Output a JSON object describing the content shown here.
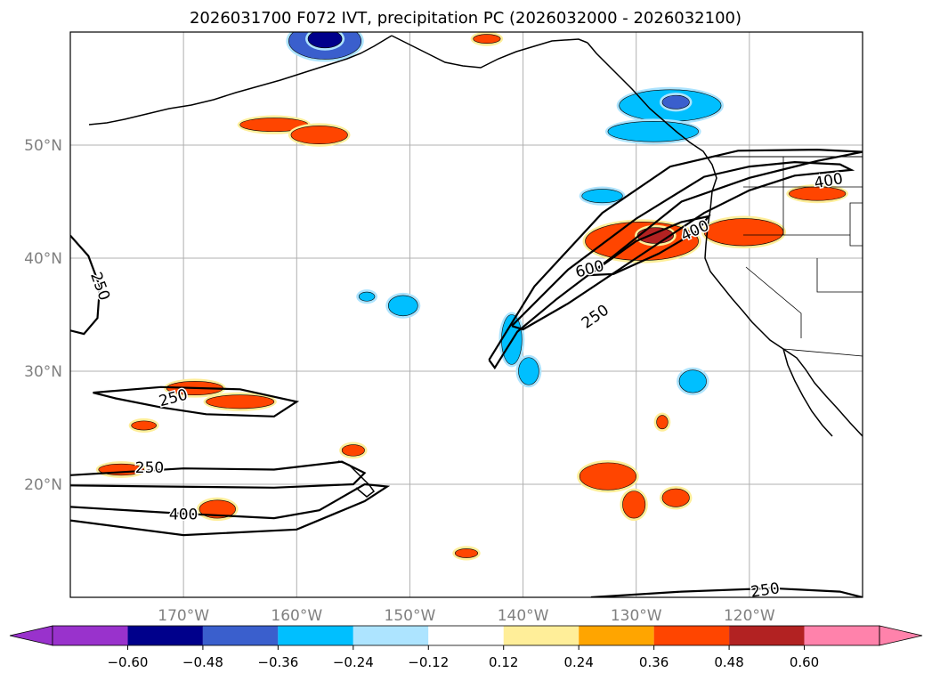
{
  "chart_data": {
    "type": "contour-map",
    "title": "2026031700 F072 IVT, precipitation PC (2026032000 - 2026032100)",
    "xlabel": "",
    "ylabel": "",
    "lon_range": [
      -180,
      -110
    ],
    "lat_range": [
      10,
      60
    ],
    "lon_ticks": [
      -170,
      -160,
      -150,
      -140,
      -130,
      -120
    ],
    "lon_tick_labels": [
      "170°W",
      "160°W",
      "150°W",
      "140°W",
      "130°W",
      "120°W"
    ],
    "lat_ticks": [
      20,
      30,
      40,
      50
    ],
    "lat_tick_labels": [
      "20°N",
      "30°N",
      "40°N",
      "50°N"
    ],
    "grid": true,
    "ivt_contour_levels": [
      250,
      400,
      600
    ],
    "ivt_contour_labels": [
      {
        "text": "250",
        "lon": -177.4,
        "lat": 37.5,
        "rotate": 70
      },
      {
        "text": "250",
        "lon": -170.9,
        "lat": 27.6,
        "rotate": -15
      },
      {
        "text": "250",
        "lon": -173.0,
        "lat": 21.4,
        "rotate": 0
      },
      {
        "text": "400",
        "lon": -170.0,
        "lat": 17.3,
        "rotate": 0
      },
      {
        "text": "600",
        "lon": -134.1,
        "lat": 39.0,
        "rotate": -15
      },
      {
        "text": "250",
        "lon": -133.6,
        "lat": 34.8,
        "rotate": -35
      },
      {
        "text": "400",
        "lon": -124.8,
        "lat": 42.4,
        "rotate": -25
      },
      {
        "text": "400",
        "lon": -113.0,
        "lat": 46.8,
        "rotate": -10
      },
      {
        "text": "250",
        "lon": -118.6,
        "lat": 10.6,
        "rotate": -8
      }
    ],
    "ivt_contours": [
      {
        "level": 250,
        "points": [
          [
            -180,
            42
          ],
          [
            -178.4,
            40.2
          ],
          [
            -177.4,
            37.5
          ],
          [
            -177.6,
            34.7
          ],
          [
            -178.8,
            33.3
          ],
          [
            -180,
            33.6
          ]
        ]
      },
      {
        "level": 250,
        "points": [
          [
            -178,
            28.1
          ],
          [
            -172,
            28.6
          ],
          [
            -165,
            28.4
          ],
          [
            -160,
            27.3
          ],
          [
            -162,
            26
          ],
          [
            -168,
            26.2
          ],
          [
            -172,
            26.8
          ],
          [
            -176,
            27.6
          ],
          [
            -178,
            28.1
          ]
        ]
      },
      {
        "level": 250,
        "points": [
          [
            -180,
            20.8
          ],
          [
            -170,
            21.4
          ],
          [
            -162,
            21.3
          ],
          [
            -156,
            22
          ],
          [
            -154,
            21
          ],
          [
            -155,
            20
          ],
          [
            -162,
            19.7
          ],
          [
            -172,
            19.8
          ],
          [
            -180,
            19.9
          ]
        ]
      },
      {
        "level": 400,
        "points": [
          [
            -180,
            18
          ],
          [
            -170,
            17.4
          ],
          [
            -162,
            17
          ],
          [
            -158,
            17.7
          ],
          [
            -154,
            20
          ],
          [
            -152,
            19.8
          ],
          [
            -154,
            18.5
          ],
          [
            -160,
            16
          ],
          [
            -170,
            15.5
          ],
          [
            -180,
            16.8
          ]
        ]
      },
      {
        "level": 600,
        "points": [
          [
            -134.2,
            38.5
          ],
          [
            -130,
            41.5
          ],
          [
            -126,
            43.2
          ],
          [
            -123.6,
            43.7
          ],
          [
            -124.6,
            42.4
          ],
          [
            -128,
            40.4
          ],
          [
            -132,
            38.6
          ],
          [
            -134.2,
            38.5
          ]
        ]
      },
      {
        "level": 400,
        "points": [
          [
            -141,
            34
          ],
          [
            -136,
            39
          ],
          [
            -130,
            43.5
          ],
          [
            -124,
            47.2
          ],
          [
            -120,
            48.1
          ],
          [
            -116,
            48.5
          ],
          [
            -112,
            48.3
          ],
          [
            -111,
            47.8
          ],
          [
            -116,
            47.3
          ],
          [
            -120,
            46
          ],
          [
            -124,
            44
          ],
          [
            -130,
            40
          ],
          [
            -136,
            36
          ],
          [
            -140,
            33.7
          ],
          [
            -141,
            34
          ]
        ]
      },
      {
        "level": 250,
        "points": [
          [
            -143,
            31
          ],
          [
            -139,
            37.5
          ],
          [
            -133,
            44
          ],
          [
            -127,
            48.1
          ],
          [
            -121,
            49.5
          ],
          [
            -114,
            49.6
          ],
          [
            -110,
            49.4
          ],
          [
            -114,
            48.6
          ],
          [
            -120,
            47.1
          ],
          [
            -126,
            45
          ],
          [
            -132,
            40.2
          ],
          [
            -137,
            36.4
          ],
          [
            -140.5,
            33.5
          ],
          [
            -142.5,
            30.3
          ],
          [
            -143,
            31
          ]
        ]
      },
      {
        "level": 250,
        "points": [
          [
            -134,
            10
          ],
          [
            -126,
            10.5
          ],
          [
            -118,
            10.8
          ],
          [
            -112,
            10.5
          ],
          [
            -110,
            10
          ]
        ]
      }
    ],
    "precip_pc_colorbar": {
      "levels": [
        -0.6,
        -0.48,
        -0.36,
        -0.24,
        -0.12,
        0.12,
        0.24,
        0.36,
        0.48,
        0.6
      ],
      "tick_labels": [
        "−0.60",
        "−0.48",
        "−0.36",
        "−0.24",
        "−0.12",
        "0.12",
        "0.24",
        "0.36",
        "0.48",
        "0.60"
      ],
      "colors": [
        "#9932CC",
        "#00008B",
        "#3A5FCD",
        "#00BFFF",
        "#ADE4FF",
        "#FFFFFF",
        "#FFEE99",
        "#FFA500",
        "#FF4500",
        "#B22222",
        "#FF82AB"
      ],
      "extend": "both"
    },
    "precip_pc_regions": [
      {
        "value": -0.4,
        "lon": -157.5,
        "lat": 59.2,
        "rx": 3.2,
        "ry": 1.6
      },
      {
        "value": -0.5,
        "lon": -157.5,
        "lat": 59.4,
        "rx": 1.5,
        "ry": 0.8
      },
      {
        "value": -0.3,
        "lon": -127,
        "lat": 53.5,
        "rx": 4.5,
        "ry": 1.4
      },
      {
        "value": -0.45,
        "lon": -126.5,
        "lat": 53.8,
        "rx": 1.2,
        "ry": 0.6
      },
      {
        "value": -0.3,
        "lon": -128.5,
        "lat": 51.2,
        "rx": 4,
        "ry": 0.9
      },
      {
        "value": -0.3,
        "lon": -133,
        "lat": 45.5,
        "rx": 1.8,
        "ry": 0.6
      },
      {
        "value": -0.3,
        "lon": -141,
        "lat": 32.8,
        "rx": 0.9,
        "ry": 2.2
      },
      {
        "value": -0.3,
        "lon": -139.5,
        "lat": 30,
        "rx": 0.9,
        "ry": 1.2
      },
      {
        "value": -0.3,
        "lon": -125,
        "lat": 29.1,
        "rx": 1.2,
        "ry": 1
      },
      {
        "value": -0.3,
        "lon": -150.6,
        "lat": 35.8,
        "rx": 1.3,
        "ry": 0.9
      },
      {
        "value": -0.25,
        "lon": -153.8,
        "lat": 36.6,
        "rx": 0.7,
        "ry": 0.4
      },
      {
        "value": 0.4,
        "lon": -129.5,
        "lat": 41.5,
        "rx": 5,
        "ry": 1.7
      },
      {
        "value": 0.5,
        "lon": -128.3,
        "lat": 42,
        "rx": 1.6,
        "ry": 0.7
      },
      {
        "value": 0.4,
        "lon": -120.5,
        "lat": 42.3,
        "rx": 3.5,
        "ry": 1.2
      },
      {
        "value": 0.4,
        "lon": -114,
        "lat": 45.7,
        "rx": 2.5,
        "ry": 0.6
      },
      {
        "value": 0.4,
        "lon": -162,
        "lat": 51.8,
        "rx": 3,
        "ry": 0.6
      },
      {
        "value": 0.4,
        "lon": -158,
        "lat": 50.9,
        "rx": 2.5,
        "ry": 0.8
      },
      {
        "value": 0.4,
        "lon": -169,
        "lat": 28.5,
        "rx": 2.5,
        "ry": 0.6
      },
      {
        "value": 0.4,
        "lon": -165,
        "lat": 27.3,
        "rx": 3,
        "ry": 0.6
      },
      {
        "value": 0.4,
        "lon": -173.5,
        "lat": 25.2,
        "rx": 1.1,
        "ry": 0.4
      },
      {
        "value": 0.4,
        "lon": -175.5,
        "lat": 21.3,
        "rx": 2,
        "ry": 0.5
      },
      {
        "value": 0.4,
        "lon": -167,
        "lat": 17.8,
        "rx": 1.6,
        "ry": 0.8
      },
      {
        "value": 0.4,
        "lon": -132.5,
        "lat": 20.7,
        "rx": 2.5,
        "ry": 1.2
      },
      {
        "value": 0.4,
        "lon": -130.2,
        "lat": 18.2,
        "rx": 1,
        "ry": 1.2
      },
      {
        "value": 0.4,
        "lon": -126.5,
        "lat": 18.8,
        "rx": 1.2,
        "ry": 0.8
      },
      {
        "value": 0.4,
        "lon": -155,
        "lat": 23,
        "rx": 1,
        "ry": 0.5
      },
      {
        "value": 0.4,
        "lon": -145,
        "lat": 13.9,
        "rx": 1,
        "ry": 0.4
      },
      {
        "value": 0.4,
        "lon": -143.2,
        "lat": 59.4,
        "rx": 1.2,
        "ry": 0.4
      },
      {
        "value": 0.4,
        "lon": -127.7,
        "lat": 25.5,
        "rx": 0.5,
        "ry": 0.6
      }
    ],
    "coastline_note": "Aleutians, Alaska, British Columbia and US/Mexico west coast with state borders"
  }
}
